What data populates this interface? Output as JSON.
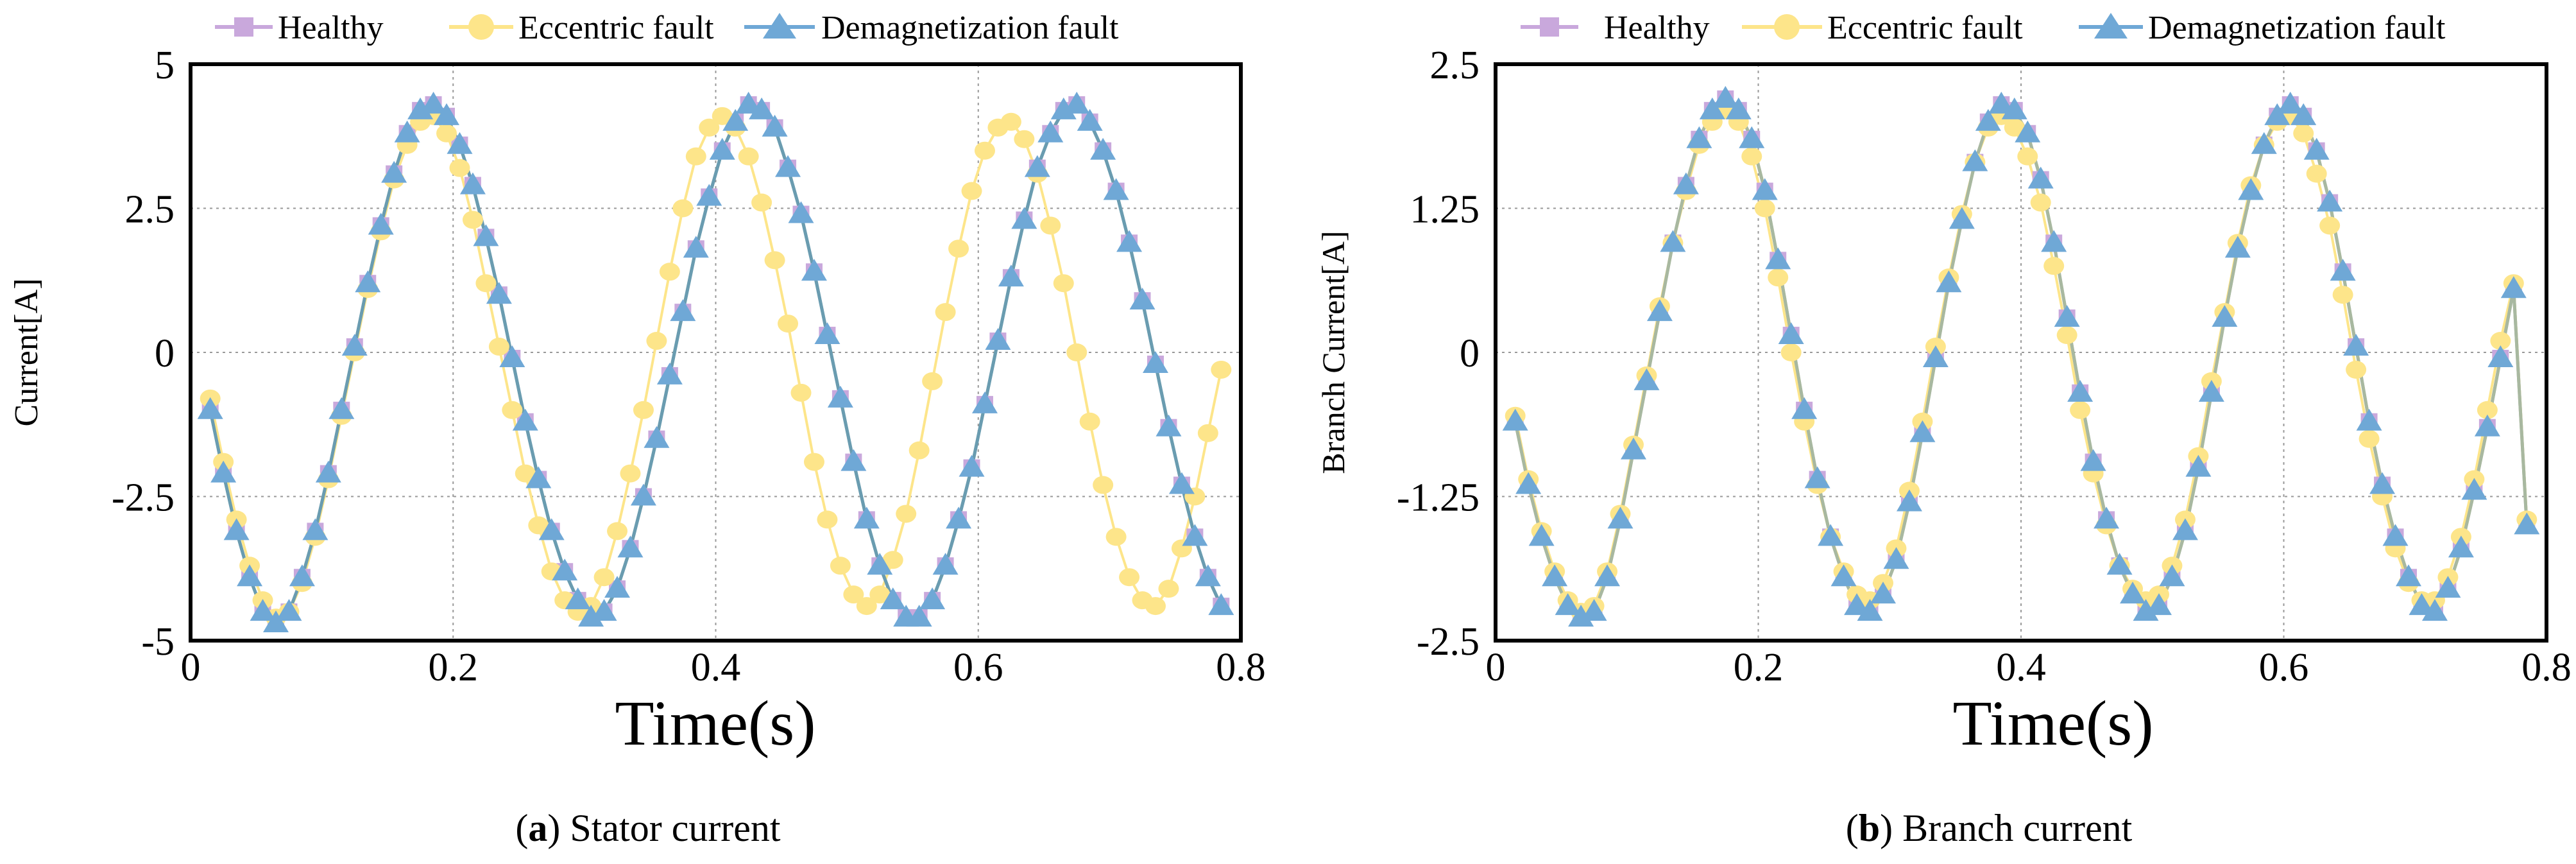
{
  "colors": {
    "healthy": "#c9a8dc",
    "eccentric": "#fde58a",
    "demag": "#6fa8d6",
    "line_a": "#6a9cb0",
    "line_b": "#a8b8a0"
  },
  "legend": {
    "healthy": "Healthy",
    "eccentric": "Eccentric fault",
    "demag": "Demagnetization fault"
  },
  "chart_data": [
    {
      "type": "line",
      "panel_letter": "a",
      "caption": " Stator current",
      "xlabel": "Time(s)",
      "ylabel": "Current[A]",
      "xlim": [
        0,
        0.8
      ],
      "ylim": [
        -5,
        5
      ],
      "xticks": [
        0,
        0.2,
        0.4,
        0.6,
        0.8
      ],
      "xtick_labels": [
        "0",
        "0.2",
        "0.4",
        "0.6",
        "0.8"
      ],
      "yticks": [
        -5,
        -2.5,
        0,
        2.5,
        5
      ],
      "ytick_labels": [
        "-5",
        "-2.5",
        "0",
        "2.5",
        "5"
      ],
      "grid": true,
      "legend_position": "top",
      "x": [
        0.015,
        0.025,
        0.035,
        0.045,
        0.055,
        0.065,
        0.075,
        0.085,
        0.095,
        0.105,
        0.115,
        0.125,
        0.135,
        0.145,
        0.155,
        0.165,
        0.175,
        0.185,
        0.195,
        0.205,
        0.215,
        0.225,
        0.235,
        0.245,
        0.255,
        0.265,
        0.275,
        0.285,
        0.295,
        0.305,
        0.315,
        0.325,
        0.335,
        0.345,
        0.355,
        0.365,
        0.375,
        0.385,
        0.395,
        0.405,
        0.415,
        0.425,
        0.435,
        0.445,
        0.455,
        0.465,
        0.475,
        0.485,
        0.495,
        0.505,
        0.515,
        0.525,
        0.535,
        0.545,
        0.555,
        0.565,
        0.575,
        0.585,
        0.595,
        0.605,
        0.615,
        0.625,
        0.635,
        0.645,
        0.655,
        0.665,
        0.675,
        0.685,
        0.695,
        0.705,
        0.715,
        0.725,
        0.735,
        0.745,
        0.755,
        0.765,
        0.775,
        0.785
      ],
      "series": [
        {
          "name": "Healthy",
          "marker": "square",
          "values": [
            -1.0,
            -2.1,
            -3.1,
            -3.9,
            -4.5,
            -4.7,
            -4.5,
            -3.9,
            -3.1,
            -2.1,
            -1.0,
            0.1,
            1.2,
            2.2,
            3.1,
            3.8,
            4.2,
            4.3,
            4.1,
            3.6,
            2.9,
            2.0,
            1.0,
            -0.1,
            -1.2,
            -2.2,
            -3.1,
            -3.8,
            -4.3,
            -4.6,
            -4.5,
            -4.1,
            -3.4,
            -2.5,
            -1.5,
            -0.4,
            0.7,
            1.8,
            2.7,
            3.5,
            4.0,
            4.3,
            4.2,
            3.9,
            3.2,
            2.4,
            1.4,
            0.3,
            -0.8,
            -1.9,
            -2.9,
            -3.7,
            -4.3,
            -4.6,
            -4.6,
            -4.3,
            -3.7,
            -2.9,
            -2.0,
            -0.9,
            0.2,
            1.3,
            2.3,
            3.2,
            3.8,
            4.2,
            4.3,
            4.0,
            3.5,
            2.8,
            1.9,
            0.9,
            -0.2,
            -1.3,
            -2.3,
            -3.2,
            -3.9,
            -4.4
          ]
        },
        {
          "name": "Eccentric fault",
          "marker": "circle",
          "values": [
            -0.8,
            -1.9,
            -2.9,
            -3.7,
            -4.3,
            -4.6,
            -4.5,
            -4.0,
            -3.2,
            -2.2,
            -1.1,
            0.0,
            1.1,
            2.1,
            3.0,
            3.6,
            4.0,
            4.1,
            3.8,
            3.2,
            2.3,
            1.2,
            0.1,
            -1.0,
            -2.1,
            -3.0,
            -3.8,
            -4.3,
            -4.5,
            -4.4,
            -3.9,
            -3.1,
            -2.1,
            -1.0,
            0.2,
            1.4,
            2.5,
            3.4,
            3.9,
            4.1,
            3.9,
            3.4,
            2.6,
            1.6,
            0.5,
            -0.7,
            -1.9,
            -2.9,
            -3.7,
            -4.2,
            -4.4,
            -4.2,
            -3.6,
            -2.8,
            -1.7,
            -0.5,
            0.7,
            1.8,
            2.8,
            3.5,
            3.9,
            4.0,
            3.7,
            3.1,
            2.2,
            1.2,
            0.0,
            -1.2,
            -2.3,
            -3.2,
            -3.9,
            -4.3,
            -4.4,
            -4.1,
            -3.4,
            -2.5,
            -1.4,
            -0.3
          ]
        },
        {
          "name": "Demagnetization fault",
          "marker": "triangle",
          "values": [
            -1.0,
            -2.1,
            -3.1,
            -3.9,
            -4.5,
            -4.7,
            -4.5,
            -3.9,
            -3.1,
            -2.1,
            -1.0,
            0.1,
            1.2,
            2.2,
            3.1,
            3.8,
            4.2,
            4.3,
            4.1,
            3.6,
            2.9,
            2.0,
            1.0,
            -0.1,
            -1.2,
            -2.2,
            -3.1,
            -3.8,
            -4.3,
            -4.6,
            -4.5,
            -4.1,
            -3.4,
            -2.5,
            -1.5,
            -0.4,
            0.7,
            1.8,
            2.7,
            3.5,
            4.0,
            4.3,
            4.2,
            3.9,
            3.2,
            2.4,
            1.4,
            0.3,
            -0.8,
            -1.9,
            -2.9,
            -3.7,
            -4.3,
            -4.6,
            -4.6,
            -4.3,
            -3.7,
            -2.9,
            -2.0,
            -0.9,
            0.2,
            1.3,
            2.3,
            3.2,
            3.8,
            4.2,
            4.3,
            4.0,
            3.5,
            2.8,
            1.9,
            0.9,
            -0.2,
            -1.3,
            -2.3,
            -3.2,
            -3.9,
            -4.4
          ]
        }
      ]
    },
    {
      "type": "line",
      "panel_letter": "b",
      "caption": " Branch current",
      "xlabel": "Time(s)",
      "ylabel": "Branch Current[A]",
      "xlim": [
        0,
        0.8
      ],
      "ylim": [
        -2.5,
        2.5
      ],
      "xticks": [
        0,
        0.2,
        0.4,
        0.6,
        0.8
      ],
      "xtick_labels": [
        "0",
        "0.2",
        "0.4",
        "0.6",
        "0.8"
      ],
      "yticks": [
        -2.5,
        -1.25,
        0,
        1.25,
        2.5
      ],
      "ytick_labels": [
        "-2.5",
        "-1.25",
        "0",
        "1.25",
        "2.5"
      ],
      "grid": true,
      "legend_position": "top",
      "x": [
        0.015,
        0.025,
        0.035,
        0.045,
        0.055,
        0.065,
        0.075,
        0.085,
        0.095,
        0.105,
        0.115,
        0.125,
        0.135,
        0.145,
        0.155,
        0.165,
        0.175,
        0.185,
        0.195,
        0.205,
        0.215,
        0.225,
        0.235,
        0.245,
        0.255,
        0.265,
        0.275,
        0.285,
        0.295,
        0.305,
        0.315,
        0.325,
        0.335,
        0.345,
        0.355,
        0.365,
        0.375,
        0.385,
        0.395,
        0.405,
        0.415,
        0.425,
        0.435,
        0.445,
        0.455,
        0.465,
        0.475,
        0.485,
        0.495,
        0.505,
        0.515,
        0.525,
        0.535,
        0.545,
        0.555,
        0.565,
        0.575,
        0.585,
        0.595,
        0.605,
        0.615,
        0.625,
        0.635,
        0.645,
        0.655,
        0.665,
        0.675,
        0.685,
        0.695,
        0.705,
        0.715,
        0.725,
        0.735,
        0.745,
        0.755,
        0.765,
        0.775,
        0.785
      ],
      "series": [
        {
          "name": "Healthy",
          "marker": "square",
          "values": [
            -0.6,
            -1.15,
            -1.6,
            -1.95,
            -2.2,
            -2.3,
            -2.25,
            -1.95,
            -1.45,
            -0.85,
            -0.25,
            0.35,
            0.95,
            1.45,
            1.85,
            2.1,
            2.2,
            2.1,
            1.85,
            1.4,
            0.8,
            0.15,
            -0.5,
            -1.1,
            -1.6,
            -1.95,
            -2.2,
            -2.25,
            -2.1,
            -1.8,
            -1.3,
            -0.7,
            -0.05,
            0.6,
            1.15,
            1.65,
            2.0,
            2.15,
            2.1,
            1.9,
            1.5,
            0.95,
            0.3,
            -0.35,
            -0.95,
            -1.45,
            -1.85,
            -2.1,
            -2.25,
            -2.2,
            -1.95,
            -1.55,
            -1.0,
            -0.35,
            0.3,
            0.9,
            1.4,
            1.8,
            2.05,
            2.15,
            2.05,
            1.75,
            1.3,
            0.7,
            0.05,
            -0.6,
            -1.15,
            -1.6,
            -1.95,
            -2.2,
            -2.25,
            -2.05,
            -1.7,
            -1.2,
            -0.65,
            -0.05,
            0.55,
            -1.5
          ]
        },
        {
          "name": "Eccentric fault",
          "marker": "circle",
          "values": [
            -0.55,
            -1.1,
            -1.55,
            -1.9,
            -2.15,
            -2.25,
            -2.2,
            -1.9,
            -1.4,
            -0.8,
            -0.2,
            0.4,
            0.95,
            1.4,
            1.8,
            2.0,
            2.1,
            2.0,
            1.7,
            1.25,
            0.65,
            0.0,
            -0.6,
            -1.15,
            -1.6,
            -1.9,
            -2.1,
            -2.15,
            -2.0,
            -1.7,
            -1.2,
            -0.6,
            0.05,
            0.65,
            1.2,
            1.65,
            1.95,
            2.05,
            1.95,
            1.7,
            1.3,
            0.75,
            0.15,
            -0.5,
            -1.05,
            -1.5,
            -1.85,
            -2.05,
            -2.15,
            -2.1,
            -1.85,
            -1.45,
            -0.9,
            -0.25,
            0.35,
            0.95,
            1.45,
            1.8,
            2.0,
            2.05,
            1.9,
            1.55,
            1.1,
            0.5,
            -0.15,
            -0.75,
            -1.25,
            -1.7,
            -2.0,
            -2.15,
            -2.15,
            -1.95,
            -1.6,
            -1.1,
            -0.5,
            0.1,
            0.6,
            -1.45
          ]
        },
        {
          "name": "Demagnetization fault",
          "marker": "triangle",
          "values": [
            -0.6,
            -1.15,
            -1.6,
            -1.95,
            -2.2,
            -2.3,
            -2.25,
            -1.95,
            -1.45,
            -0.85,
            -0.25,
            0.35,
            0.95,
            1.45,
            1.85,
            2.1,
            2.2,
            2.1,
            1.85,
            1.4,
            0.8,
            0.15,
            -0.5,
            -1.1,
            -1.6,
            -1.95,
            -2.2,
            -2.25,
            -2.1,
            -1.8,
            -1.3,
            -0.7,
            -0.05,
            0.6,
            1.15,
            1.65,
            2.0,
            2.15,
            2.1,
            1.9,
            1.5,
            0.95,
            0.3,
            -0.35,
            -0.95,
            -1.45,
            -1.85,
            -2.1,
            -2.25,
            -2.2,
            -1.95,
            -1.55,
            -1.0,
            -0.35,
            0.3,
            0.9,
            1.4,
            1.8,
            2.05,
            2.15,
            2.05,
            1.75,
            1.3,
            0.7,
            0.05,
            -0.6,
            -1.15,
            -1.6,
            -1.95,
            -2.2,
            -2.25,
            -2.05,
            -1.7,
            -1.2,
            -0.65,
            -0.05,
            0.55,
            -1.5
          ]
        }
      ]
    }
  ]
}
